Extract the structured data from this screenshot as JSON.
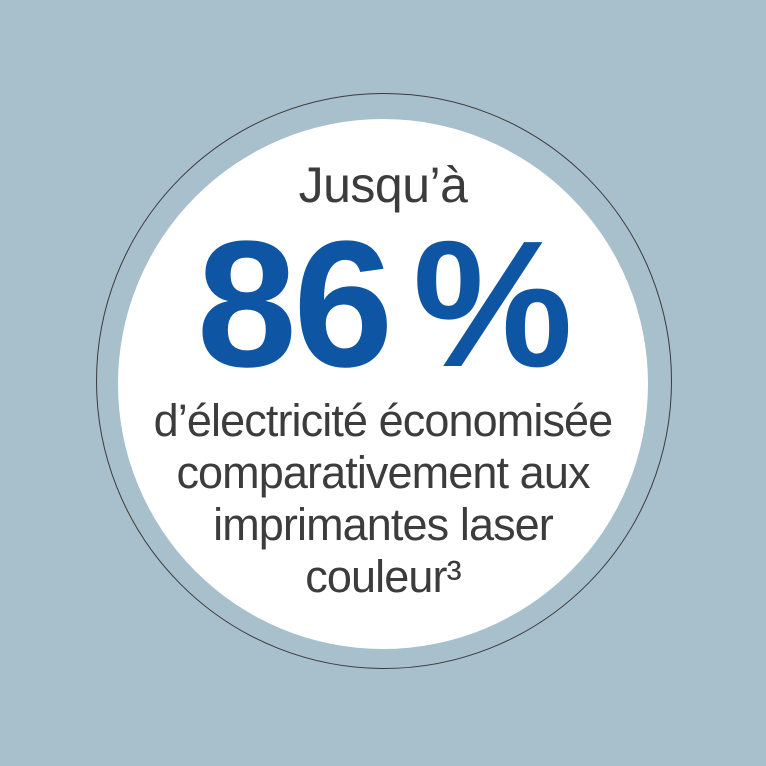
{
  "badge": {
    "prefix": "Jusqu’à",
    "value": "86 %",
    "description_lines": [
      "d’électricité économisée",
      "comparativement aux",
      "imprimantes laser",
      "couleur³"
    ],
    "colors": {
      "background": "#A8C0CC",
      "badge_fill": "#FFFFFF",
      "outline_stroke": "#3B3B3B",
      "value_text": "#0E55A3",
      "body_text": "#3C3C3C"
    }
  }
}
